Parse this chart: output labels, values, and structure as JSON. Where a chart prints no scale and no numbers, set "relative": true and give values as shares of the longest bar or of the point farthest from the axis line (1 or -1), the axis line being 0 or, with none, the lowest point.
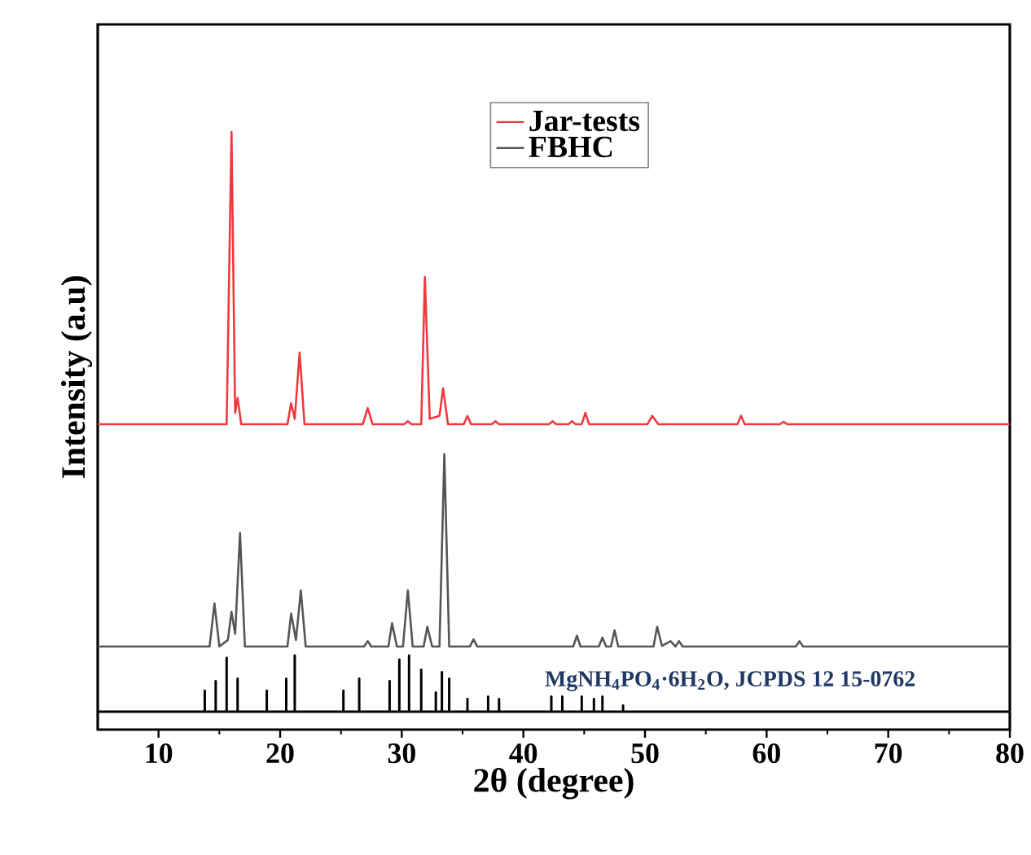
{
  "chart_data": {
    "type": "line",
    "relative": true,
    "xlabel": "2θ (degree)",
    "ylabel": "Intensity (a.u)",
    "xlim": [
      5,
      80
    ],
    "xticks": [
      10,
      20,
      30,
      40,
      50,
      60,
      70,
      80
    ],
    "legend": "top right",
    "grid": false,
    "tick_labels": "x",
    "series": [
      {
        "name": "Jar-tests",
        "color": "#f0393e",
        "x": [
          5,
          15.6,
          16.0,
          16.3,
          16.5,
          16.8,
          20.6,
          20.9,
          21.2,
          21.6,
          22.0,
          26.8,
          27.2,
          27.6,
          30.2,
          30.5,
          30.8,
          31.6,
          31.9,
          32.3,
          33.1,
          33.4,
          33.8,
          35.1,
          35.4,
          35.7,
          37.4,
          37.7,
          38.0,
          42.1,
          42.4,
          42.7,
          43.7,
          44.0,
          44.3,
          44.8,
          45.1,
          45.4,
          50.2,
          50.6,
          51.1,
          57.6,
          57.9,
          58.2,
          61.1,
          61.4,
          61.7,
          80
        ],
        "values": [
          0.511,
          0.511,
          1.0,
          0.53,
          0.555,
          0.511,
          0.511,
          0.546,
          0.52,
          0.631,
          0.511,
          0.511,
          0.538,
          0.511,
          0.511,
          0.516,
          0.511,
          0.511,
          0.757,
          0.52,
          0.525,
          0.571,
          0.511,
          0.511,
          0.525,
          0.511,
          0.511,
          0.516,
          0.511,
          0.511,
          0.516,
          0.511,
          0.511,
          0.516,
          0.511,
          0.511,
          0.53,
          0.511,
          0.511,
          0.525,
          0.511,
          0.511,
          0.525,
          0.511,
          0.511,
          0.515,
          0.511,
          0.511
        ]
      },
      {
        "name": "FBHC",
        "color": "#555555",
        "x": [
          5,
          14.2,
          14.6,
          15.0,
          15.7,
          16.0,
          16.3,
          16.7,
          17.1,
          20.6,
          20.9,
          21.3,
          21.7,
          22.1,
          26.9,
          27.2,
          27.5,
          28.9,
          29.2,
          29.6,
          30.1,
          30.5,
          30.9,
          31.8,
          32.1,
          32.5,
          33.1,
          33.5,
          33.9,
          35.6,
          35.9,
          36.2,
          44.1,
          44.4,
          44.7,
          46.2,
          46.5,
          46.8,
          47.2,
          47.5,
          47.8,
          50.7,
          51.0,
          51.4,
          52.1,
          52.5,
          52.8,
          53.1,
          62.4,
          62.7,
          63.0,
          80
        ],
        "values": [
          0.139,
          0.139,
          0.211,
          0.139,
          0.15,
          0.197,
          0.16,
          0.329,
          0.139,
          0.139,
          0.194,
          0.15,
          0.233,
          0.139,
          0.139,
          0.148,
          0.139,
          0.139,
          0.178,
          0.139,
          0.139,
          0.233,
          0.139,
          0.139,
          0.172,
          0.139,
          0.139,
          0.461,
          0.139,
          0.139,
          0.151,
          0.139,
          0.139,
          0.157,
          0.139,
          0.139,
          0.154,
          0.139,
          0.139,
          0.166,
          0.139,
          0.139,
          0.172,
          0.14,
          0.148,
          0.139,
          0.148,
          0.139,
          0.139,
          0.148,
          0.139,
          0.139
        ]
      },
      {
        "name": "MgNH$_{4}$PO$_{4}$·6H$_{2}$O, JCPDS 12 15-0762",
        "type": "line",
        "color": "#000000",
        "x": [
          5,
          13.8,
          13.8,
          13.8,
          14.7,
          14.7,
          14.7,
          15.6,
          15.6,
          15.6,
          16.5,
          16.5,
          16.5,
          18.9,
          18.9,
          18.9,
          20.5,
          20.5,
          20.5,
          21.2,
          21.2,
          21.2,
          25.2,
          25.2,
          25.2,
          26.5,
          26.5,
          26.5,
          29.0,
          29.0,
          29.0,
          29.8,
          29.8,
          29.8,
          30.6,
          30.6,
          30.6,
          31.6,
          31.6,
          31.6,
          32.8,
          32.8,
          32.8,
          33.3,
          33.3,
          33.3,
          33.9,
          33.9,
          33.9,
          35.4,
          35.4,
          35.4,
          37.1,
          37.1,
          37.1,
          38.0,
          38.0,
          38.0,
          42.3,
          42.3,
          42.3,
          43.2,
          43.2,
          43.2,
          44.8,
          44.8,
          44.8,
          45.8,
          45.8,
          45.8,
          46.5,
          46.5,
          46.5,
          48.2,
          48.2,
          48.2,
          80
        ],
        "values": [
          0.03,
          0.03,
          0.065,
          0.03,
          0.03,
          0.081,
          0.03,
          0.03,
          0.12,
          0.03,
          0.03,
          0.085,
          0.03,
          0.03,
          0.065,
          0.03,
          0.03,
          0.085,
          0.03,
          0.03,
          0.124,
          0.03,
          0.03,
          0.065,
          0.03,
          0.03,
          0.085,
          0.03,
          0.03,
          0.081,
          0.03,
          0.03,
          0.117,
          0.03,
          0.03,
          0.124,
          0.03,
          0.03,
          0.1,
          0.03,
          0.03,
          0.062,
          0.03,
          0.03,
          0.096,
          0.03,
          0.03,
          0.085,
          0.03,
          0.03,
          0.051,
          0.03,
          0.03,
          0.055,
          0.03,
          0.03,
          0.051,
          0.03,
          0.03,
          0.055,
          0.03,
          0.03,
          0.055,
          0.03,
          0.03,
          0.055,
          0.03,
          0.03,
          0.051,
          0.03,
          0.03,
          0.055,
          0.03,
          0.03,
          0.04,
          0.03,
          0.03
        ]
      }
    ]
  }
}
